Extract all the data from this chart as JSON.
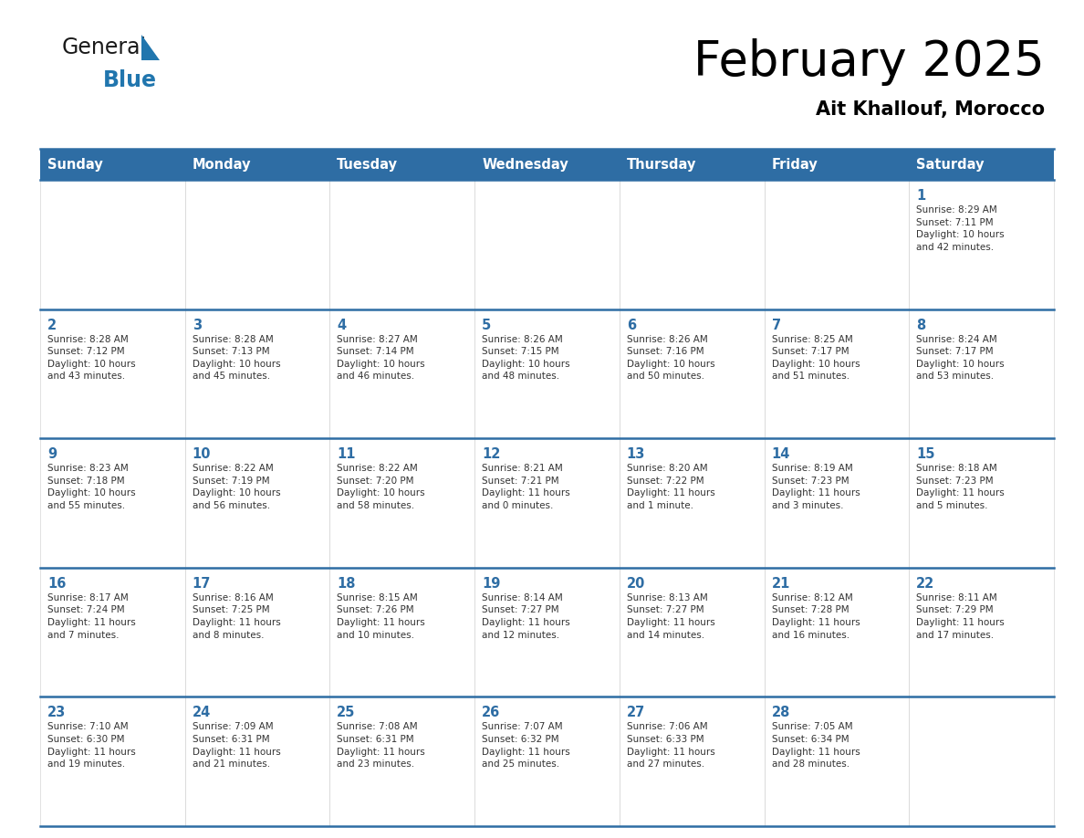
{
  "title": "February 2025",
  "subtitle": "Ait Khallouf, Morocco",
  "header_bg_color": "#2E6DA4",
  "header_text_color": "#FFFFFF",
  "cell_bg_color": "#FFFFFF",
  "border_color": "#2E6DA4",
  "row_divider_color": "#2E6DA4",
  "title_color": "#000000",
  "subtitle_color": "#000000",
  "day_number_color": "#2E6DA4",
  "cell_text_color": "#333333",
  "logo_general_color": "#1a1a1a",
  "logo_blue_color": "#2176AE",
  "days_of_week": [
    "Sunday",
    "Monday",
    "Tuesday",
    "Wednesday",
    "Thursday",
    "Friday",
    "Saturday"
  ],
  "weeks": [
    [
      {
        "day": null,
        "info": null
      },
      {
        "day": null,
        "info": null
      },
      {
        "day": null,
        "info": null
      },
      {
        "day": null,
        "info": null
      },
      {
        "day": null,
        "info": null
      },
      {
        "day": null,
        "info": null
      },
      {
        "day": 1,
        "info": "Sunrise: 8:29 AM\nSunset: 7:11 PM\nDaylight: 10 hours\nand 42 minutes."
      }
    ],
    [
      {
        "day": 2,
        "info": "Sunrise: 8:28 AM\nSunset: 7:12 PM\nDaylight: 10 hours\nand 43 minutes."
      },
      {
        "day": 3,
        "info": "Sunrise: 8:28 AM\nSunset: 7:13 PM\nDaylight: 10 hours\nand 45 minutes."
      },
      {
        "day": 4,
        "info": "Sunrise: 8:27 AM\nSunset: 7:14 PM\nDaylight: 10 hours\nand 46 minutes."
      },
      {
        "day": 5,
        "info": "Sunrise: 8:26 AM\nSunset: 7:15 PM\nDaylight: 10 hours\nand 48 minutes."
      },
      {
        "day": 6,
        "info": "Sunrise: 8:26 AM\nSunset: 7:16 PM\nDaylight: 10 hours\nand 50 minutes."
      },
      {
        "day": 7,
        "info": "Sunrise: 8:25 AM\nSunset: 7:17 PM\nDaylight: 10 hours\nand 51 minutes."
      },
      {
        "day": 8,
        "info": "Sunrise: 8:24 AM\nSunset: 7:17 PM\nDaylight: 10 hours\nand 53 minutes."
      }
    ],
    [
      {
        "day": 9,
        "info": "Sunrise: 8:23 AM\nSunset: 7:18 PM\nDaylight: 10 hours\nand 55 minutes."
      },
      {
        "day": 10,
        "info": "Sunrise: 8:22 AM\nSunset: 7:19 PM\nDaylight: 10 hours\nand 56 minutes."
      },
      {
        "day": 11,
        "info": "Sunrise: 8:22 AM\nSunset: 7:20 PM\nDaylight: 10 hours\nand 58 minutes."
      },
      {
        "day": 12,
        "info": "Sunrise: 8:21 AM\nSunset: 7:21 PM\nDaylight: 11 hours\nand 0 minutes."
      },
      {
        "day": 13,
        "info": "Sunrise: 8:20 AM\nSunset: 7:22 PM\nDaylight: 11 hours\nand 1 minute."
      },
      {
        "day": 14,
        "info": "Sunrise: 8:19 AM\nSunset: 7:23 PM\nDaylight: 11 hours\nand 3 minutes."
      },
      {
        "day": 15,
        "info": "Sunrise: 8:18 AM\nSunset: 7:23 PM\nDaylight: 11 hours\nand 5 minutes."
      }
    ],
    [
      {
        "day": 16,
        "info": "Sunrise: 8:17 AM\nSunset: 7:24 PM\nDaylight: 11 hours\nand 7 minutes."
      },
      {
        "day": 17,
        "info": "Sunrise: 8:16 AM\nSunset: 7:25 PM\nDaylight: 11 hours\nand 8 minutes."
      },
      {
        "day": 18,
        "info": "Sunrise: 8:15 AM\nSunset: 7:26 PM\nDaylight: 11 hours\nand 10 minutes."
      },
      {
        "day": 19,
        "info": "Sunrise: 8:14 AM\nSunset: 7:27 PM\nDaylight: 11 hours\nand 12 minutes."
      },
      {
        "day": 20,
        "info": "Sunrise: 8:13 AM\nSunset: 7:27 PM\nDaylight: 11 hours\nand 14 minutes."
      },
      {
        "day": 21,
        "info": "Sunrise: 8:12 AM\nSunset: 7:28 PM\nDaylight: 11 hours\nand 16 minutes."
      },
      {
        "day": 22,
        "info": "Sunrise: 8:11 AM\nSunset: 7:29 PM\nDaylight: 11 hours\nand 17 minutes."
      }
    ],
    [
      {
        "day": 23,
        "info": "Sunrise: 7:10 AM\nSunset: 6:30 PM\nDaylight: 11 hours\nand 19 minutes."
      },
      {
        "day": 24,
        "info": "Sunrise: 7:09 AM\nSunset: 6:31 PM\nDaylight: 11 hours\nand 21 minutes."
      },
      {
        "day": 25,
        "info": "Sunrise: 7:08 AM\nSunset: 6:31 PM\nDaylight: 11 hours\nand 23 minutes."
      },
      {
        "day": 26,
        "info": "Sunrise: 7:07 AM\nSunset: 6:32 PM\nDaylight: 11 hours\nand 25 minutes."
      },
      {
        "day": 27,
        "info": "Sunrise: 7:06 AM\nSunset: 6:33 PM\nDaylight: 11 hours\nand 27 minutes."
      },
      {
        "day": 28,
        "info": "Sunrise: 7:05 AM\nSunset: 6:34 PM\nDaylight: 11 hours\nand 28 minutes."
      },
      {
        "day": null,
        "info": null
      }
    ]
  ]
}
